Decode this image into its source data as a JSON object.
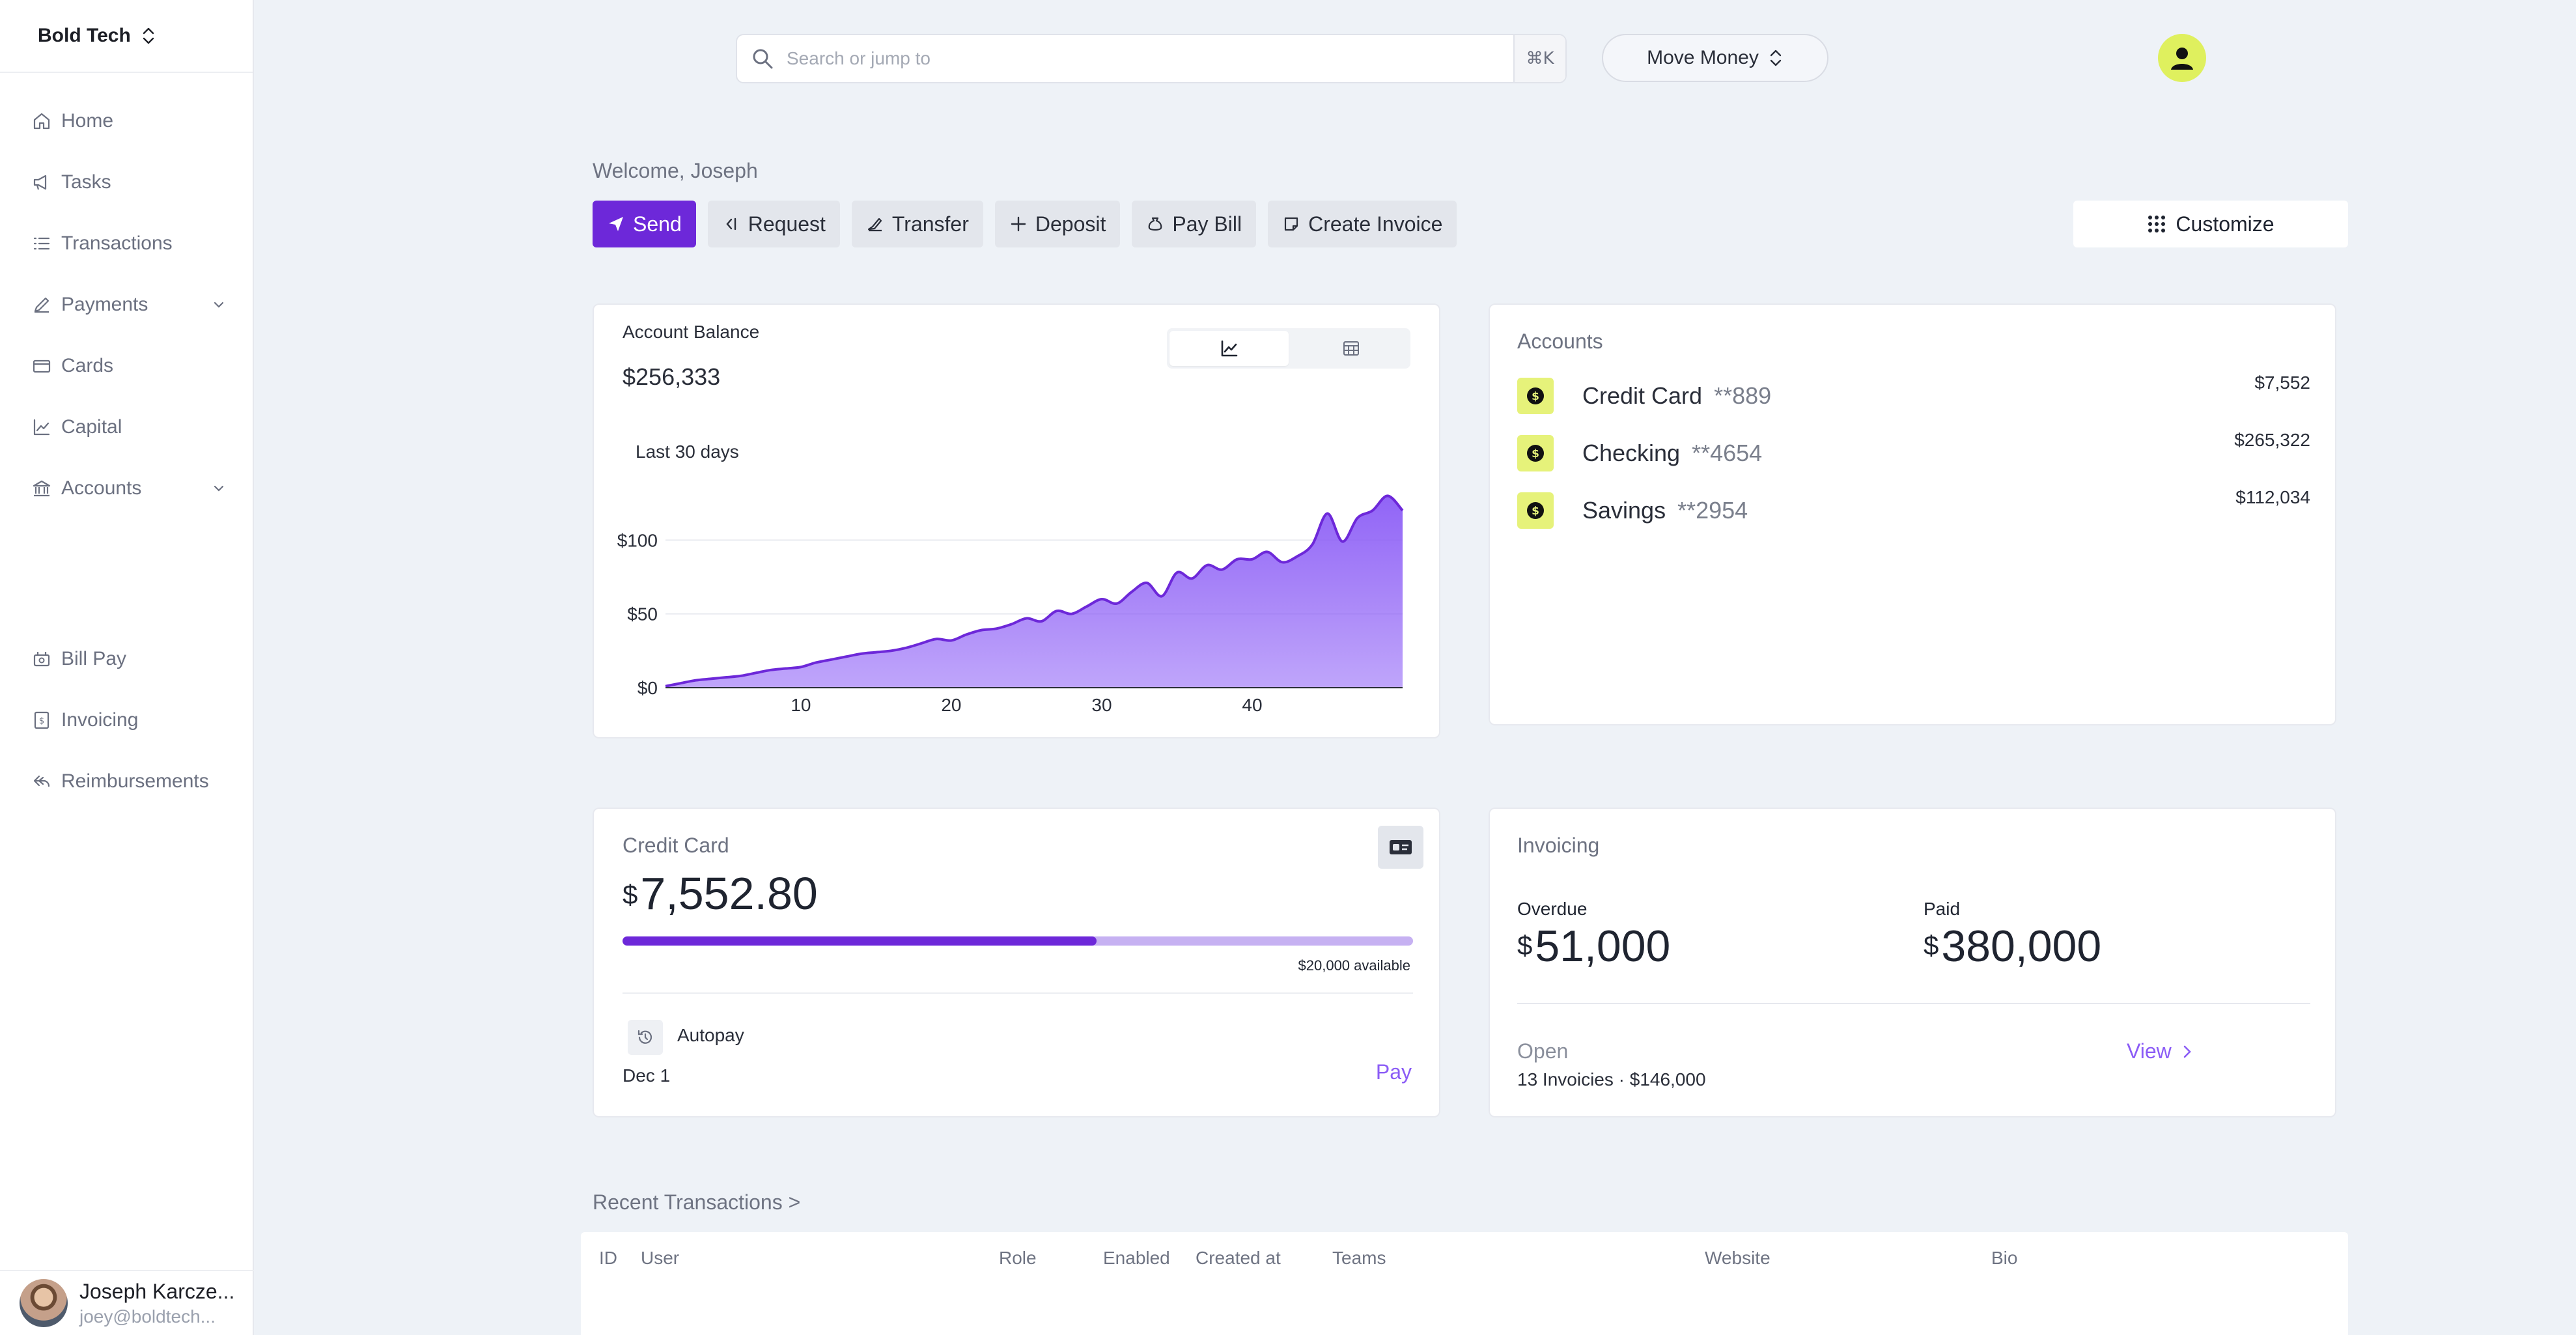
{
  "sidebar": {
    "org_name": "Bold Tech",
    "items": [
      {
        "label": "Home",
        "icon": "home-icon"
      },
      {
        "label": "Tasks",
        "icon": "megaphone-icon"
      },
      {
        "label": "Transactions",
        "icon": "list-icon"
      },
      {
        "label": "Payments",
        "icon": "pen-icon",
        "expandable": true
      },
      {
        "label": "Cards",
        "icon": "card-icon"
      },
      {
        "label": "Capital",
        "icon": "line-chart-icon"
      },
      {
        "label": "Accounts",
        "icon": "bank-icon",
        "expandable": true
      },
      {
        "label": "Bill Pay",
        "icon": "bill-icon"
      },
      {
        "label": "Invoicing",
        "icon": "invoice-icon"
      },
      {
        "label": "Reimbursements",
        "icon": "return-icon"
      }
    ],
    "user": {
      "name": "Joseph Karcze...",
      "email": "joey@boldtech..."
    }
  },
  "topbar": {
    "search_placeholder": "Search or jump to",
    "shortcut": "⌘K",
    "move_money_label": "Move Money"
  },
  "welcome": "Welcome, Joseph",
  "actions": {
    "send": "Send",
    "request": "Request",
    "transfer": "Transfer",
    "deposit": "Deposit",
    "pay_bill": "Pay Bill",
    "create_invoice": "Create Invoice",
    "customize": "Customize"
  },
  "balance_card": {
    "title": "Account Balance",
    "amount": "$256,333",
    "period": "Last 30 days",
    "view_modes": [
      "chart-icon",
      "table-icon"
    ]
  },
  "chart_data": {
    "type": "area",
    "x": [
      1,
      2,
      3,
      4,
      5,
      6,
      7,
      8,
      9,
      10,
      11,
      12,
      13,
      14,
      15,
      16,
      17,
      18,
      19,
      20,
      21,
      22,
      23,
      24,
      25,
      26,
      27,
      28,
      29,
      30,
      31,
      32,
      33,
      34,
      35,
      36,
      37,
      38,
      39,
      40,
      41,
      42,
      43,
      44,
      45,
      46,
      47,
      48,
      49,
      50
    ],
    "values": [
      1,
      3,
      5,
      6,
      7,
      8,
      10,
      12,
      13,
      14,
      17,
      19,
      21,
      23,
      24,
      25,
      27,
      30,
      33,
      32,
      36,
      39,
      40,
      43,
      47,
      45,
      52,
      50,
      55,
      60,
      57,
      65,
      71,
      62,
      78,
      74,
      83,
      80,
      87,
      87,
      92,
      85,
      89,
      97,
      118,
      99,
      115,
      120,
      130,
      120
    ],
    "yticks": [
      "$0",
      "$50",
      "$100"
    ],
    "ytick_values": [
      0,
      50,
      100
    ],
    "xticks": [
      "10",
      "20",
      "30",
      "40"
    ],
    "xtick_values": [
      10,
      20,
      30,
      40
    ],
    "xlim": [
      1,
      50
    ],
    "ylim": [
      0,
      135
    ],
    "grid": true,
    "line_color": "#6d28d9",
    "fill_color": "#8b5cf6"
  },
  "accounts": {
    "title": "Accounts",
    "rows": [
      {
        "name": "Credit Card",
        "number": "**889",
        "balance": "$7,552"
      },
      {
        "name": "Checking",
        "number": "**4654",
        "balance": "$265,322"
      },
      {
        "name": "Savings",
        "number": "**2954",
        "balance": "$112,034"
      }
    ]
  },
  "credit_card": {
    "title": "Credit Card",
    "currency": "$",
    "amount": "7,552.80",
    "used_fraction": 0.6,
    "available": "$20,000 available",
    "autopay_label": "Autopay",
    "autopay_date": "Dec 1",
    "pay_label": "Pay"
  },
  "invoicing": {
    "title": "Invoicing",
    "overdue_label": "Overdue",
    "overdue_amount": "51,000",
    "paid_label": "Paid",
    "paid_amount": "380,000",
    "currency": "$",
    "open_label": "Open",
    "open_summary": "13 Invoicies · $146,000",
    "view_label": "View"
  },
  "recent_transactions": {
    "title": "Recent Transactions >",
    "columns": [
      "ID",
      "User",
      "Role",
      "Enabled",
      "Created at",
      "Teams",
      "Website",
      "Bio"
    ]
  },
  "colors": {
    "accent": "#6d28d9",
    "accent_light": "#c6b1f2",
    "lime": "#dff05e",
    "background": "#eef2f7"
  }
}
